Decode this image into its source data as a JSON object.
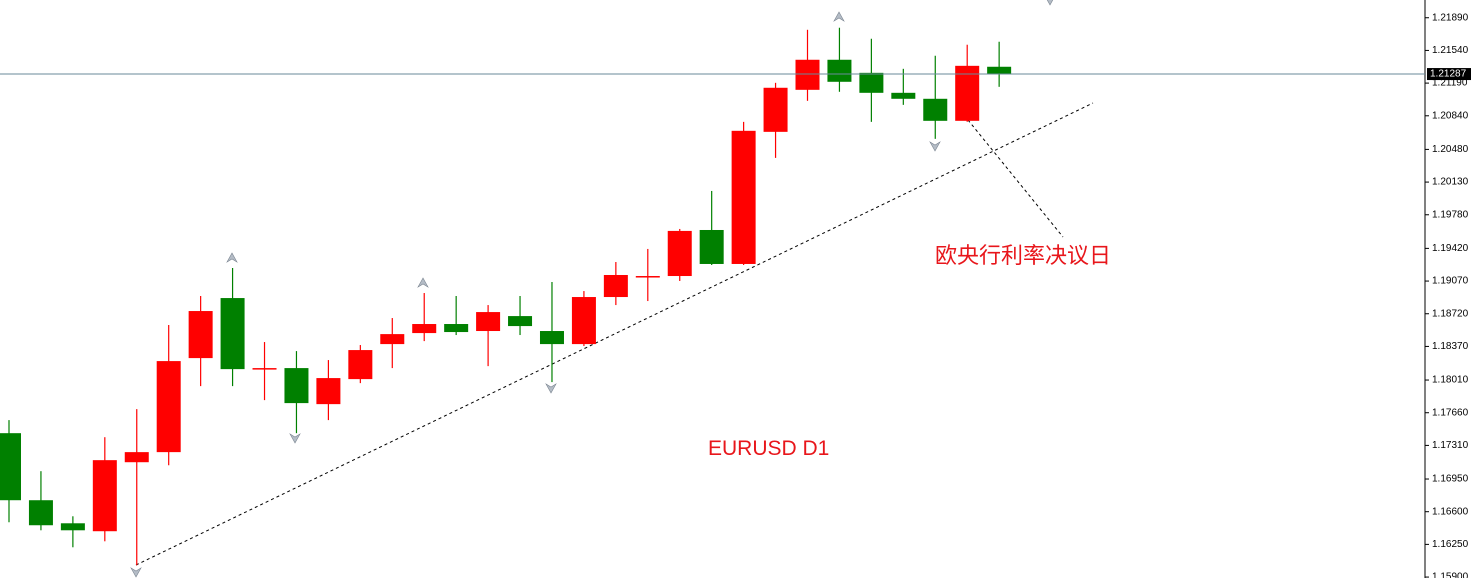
{
  "chart_data": {
    "type": "candlestick",
    "title": "EURUSD D1",
    "annotations": [
      "欧央行利率决议日"
    ],
    "up_color": "#ff0000",
    "down_color": "#008000",
    "price_line_color": "#6a8a9a",
    "current_price": 1.21287,
    "ylim": [
      1.1589,
      1.2208
    ],
    "yticks": [
      {
        "value": 1.2189,
        "label": "1.21890"
      },
      {
        "value": 1.2154,
        "label": "1.21540"
      },
      {
        "value": 1.2119,
        "label": "1.21190"
      },
      {
        "value": 1.2084,
        "label": "1.20840"
      },
      {
        "value": 1.2048,
        "label": "1.20480"
      },
      {
        "value": 1.2013,
        "label": "1.20130"
      },
      {
        "value": 1.1978,
        "label": "1.19780"
      },
      {
        "value": 1.1942,
        "label": "1.19420"
      },
      {
        "value": 1.1907,
        "label": "1.19070"
      },
      {
        "value": 1.1872,
        "label": "1.18720"
      },
      {
        "value": 1.1837,
        "label": "1.18370"
      },
      {
        "value": 1.1801,
        "label": "1.18010"
      },
      {
        "value": 1.1766,
        "label": "1.17660"
      },
      {
        "value": 1.1731,
        "label": "1.17310"
      },
      {
        "value": 1.1695,
        "label": "1.16950"
      },
      {
        "value": 1.166,
        "label": "1.16600"
      },
      {
        "value": 1.1625,
        "label": "1.16250"
      },
      {
        "value": 1.159,
        "label": "1.15900"
      }
    ],
    "ohlc": {
      "open": [
        1.17441,
        1.16723,
        1.16476,
        1.16391,
        1.1713,
        1.17238,
        1.18245,
        1.18888,
        1.18127,
        1.18138,
        1.17752,
        1.1802,
        1.18395,
        1.18513,
        1.1861,
        1.18535,
        1.18695,
        1.18535,
        1.18395,
        1.18899,
        1.19114,
        1.19124,
        1.19617,
        1.19253,
        1.20668,
        1.21118,
        1.2144,
        1.213,
        1.21086,
        1.21022,
        1.20786,
        1.21365
      ],
      "high": [
        1.17581,
        1.17034,
        1.16551,
        1.17398,
        1.17698,
        1.18599,
        1.1891,
        1.1921,
        1.18417,
        1.1832,
        1.18224,
        1.18385,
        1.18674,
        1.18942,
        1.1891,
        1.18813,
        1.1891,
        1.1906,
        1.18963,
        1.19274,
        1.19414,
        1.19628,
        1.20035,
        1.20775,
        1.21193,
        1.21761,
        1.21783,
        1.21665,
        1.21343,
        1.21483,
        1.21601,
        1.21633
      ],
      "low": [
        1.16487,
        1.16401,
        1.16219,
        1.16283,
        1.16026,
        1.17098,
        1.17945,
        1.17945,
        1.17795,
        1.17441,
        1.17581,
        1.17977,
        1.18138,
        1.18427,
        1.18492,
        1.18159,
        1.18492,
        1.17988,
        1.18374,
        1.18813,
        1.18856,
        1.19071,
        1.19242,
        1.19242,
        1.20389,
        1.21,
        1.21097,
        1.20775,
        1.20957,
        1.20593,
        1.20775,
        1.2115
      ],
      "close": [
        1.16723,
        1.16455,
        1.16401,
        1.17152,
        1.17238,
        1.18213,
        1.18749,
        1.18127,
        1.18138,
        1.17763,
        1.18031,
        1.18331,
        1.18502,
        1.1861,
        1.18524,
        1.18738,
        1.18588,
        1.18395,
        1.18899,
        1.19135,
        1.19124,
        1.19607,
        1.19253,
        1.20679,
        1.2114,
        1.2144,
        1.21204,
        1.21086,
        1.21022,
        1.20786,
        1.21375,
        1.21287
      ]
    }
  }
}
